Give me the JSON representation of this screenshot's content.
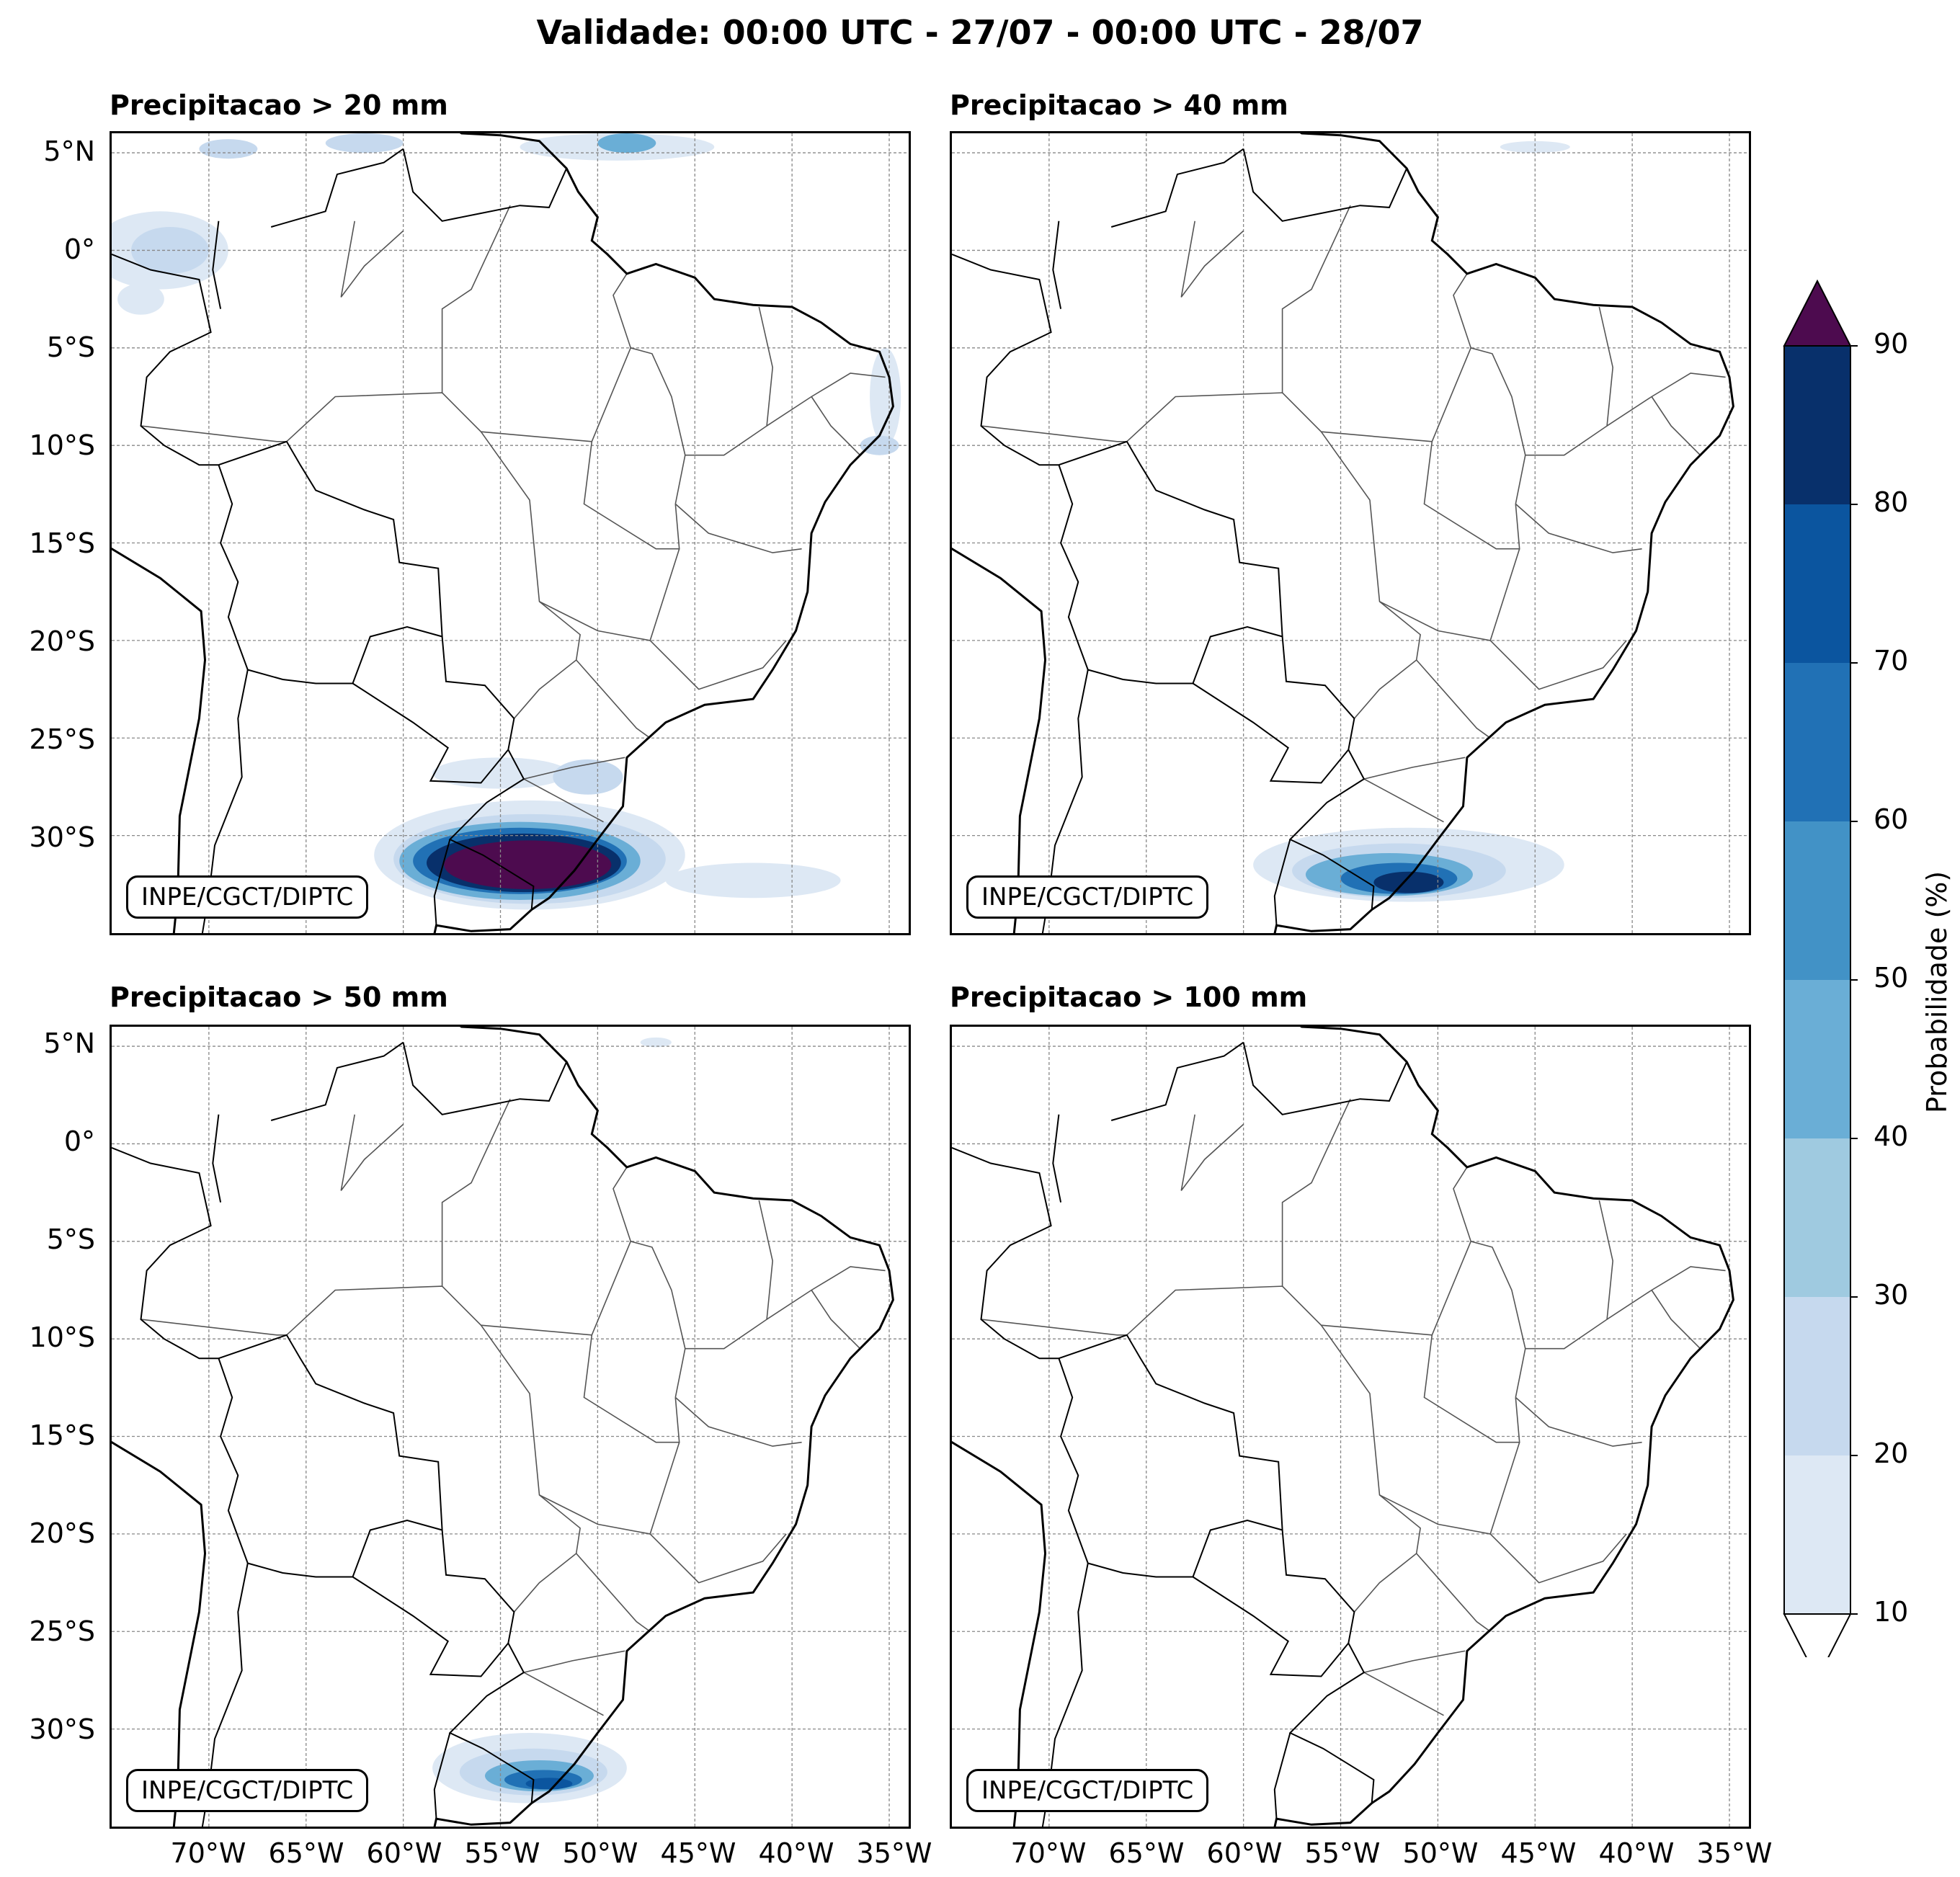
{
  "figure": {
    "title": "Validade: 00:00 UTC - 27/07 - 00:00 UTC - 28/07"
  },
  "panels": [
    {
      "title": "Precipitacao > 20 mm",
      "credit": "INPE/CGCT/DIPTC"
    },
    {
      "title": "Precipitacao > 40 mm",
      "credit": "INPE/CGCT/DIPTC"
    },
    {
      "title": "Precipitacao > 50 mm",
      "credit": "INPE/CGCT/DIPTC"
    },
    {
      "title": "Precipitacao > 100 mm",
      "credit": "INPE/CGCT/DIPTC"
    }
  ],
  "axes": {
    "lat_labels": [
      "5°N",
      "0°",
      "5°S",
      "10°S",
      "15°S",
      "20°S",
      "25°S",
      "30°S"
    ],
    "lon_labels": [
      "70°W",
      "65°W",
      "60°W",
      "55°W",
      "50°W",
      "45°W",
      "40°W",
      "35°W"
    ],
    "lat_range": [
      -35,
      6
    ],
    "lon_range": [
      -75,
      -34
    ]
  },
  "colorbar": {
    "label": "Probabilidade (%)",
    "ticks": [
      "10",
      "20",
      "30",
      "40",
      "50",
      "60",
      "70",
      "80",
      "90"
    ],
    "levels": [
      10,
      20,
      30,
      40,
      50,
      60,
      70,
      80,
      90
    ],
    "colors": [
      "#dde8f4",
      "#c6d9ee",
      "#9fcae0",
      "#6aaed6",
      "#4292c6",
      "#2171b5",
      "#0b559f",
      "#08306b"
    ],
    "over_color": "#4d0b4f",
    "under_color": "#ffffff"
  }
}
